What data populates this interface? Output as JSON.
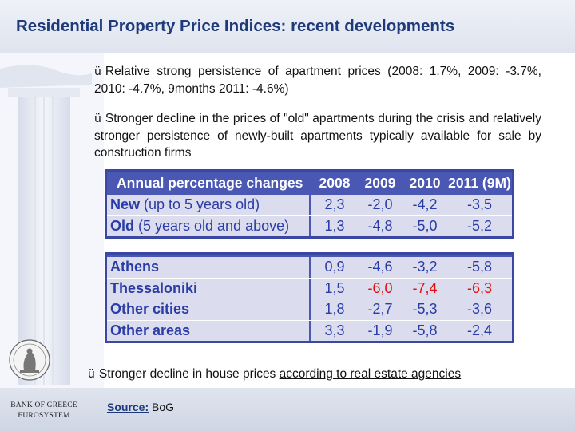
{
  "slide": {
    "title": "Residential Property Price Indices: recent developments",
    "bullets": [
      {
        "check": "ü",
        "text": "Relative strong persistence of apartment prices (2008: 1.7%, 2009: -3.7%, 2010: -4.7%, 9months 2011: -4.6%)"
      },
      {
        "check": "ü",
        "text": "Stronger decline in the prices of \"old\" apartments during the crisis and relatively stronger persistence of newly-built apartments typically available for sale by construction firms"
      },
      {
        "check": "ü",
        "text_before": "Stronger decline in house prices ",
        "text_underlined": "according to real estate agencies"
      }
    ],
    "table1": {
      "headers": [
        "Annual percentage changes",
        "2008",
        "2009",
        "2010",
        "2011 (9M)"
      ],
      "rows": [
        {
          "label_bold": "New",
          "label_rest": " (up to 5 years old)",
          "values": [
            "2,3",
            "-2,0",
            "-4,2",
            "-3,5"
          ]
        },
        {
          "label_bold": "Old",
          "label_rest": " (5 years old and above)",
          "values": [
            "1,3",
            "-4,8",
            "-5,0",
            "-5,2"
          ]
        }
      ]
    },
    "table2": {
      "rows": [
        {
          "label": "Athens",
          "values": [
            "0,9",
            "-4,6",
            "-3,2",
            "-5,8"
          ],
          "red": [
            false,
            false,
            false,
            false
          ]
        },
        {
          "label": "Thessaloniki",
          "values": [
            "1,5",
            "-6,0",
            "-7,4",
            "-6,3"
          ],
          "red": [
            false,
            true,
            true,
            true
          ]
        },
        {
          "label": "Other cities",
          "values": [
            "1,8",
            "-2,7",
            "-5,3",
            "-3,6"
          ],
          "red": [
            false,
            false,
            false,
            false
          ]
        },
        {
          "label": "Other areas",
          "values": [
            "3,3",
            "-1,9",
            "-5,8",
            "-2,4"
          ],
          "red": [
            false,
            false,
            false,
            false
          ]
        }
      ]
    },
    "footer": {
      "bank_name": "BANK OF GREECE",
      "eurosystem": "EUROSYSTEM",
      "source_label": "Source:",
      "source_value": " BoG"
    },
    "colors": {
      "title": "#1f3a7a",
      "table_header_bg": "#4a58b4",
      "table_cell_bg": "#dcdcef",
      "table_text": "#2a3da6",
      "highlight": "#e01010"
    }
  }
}
